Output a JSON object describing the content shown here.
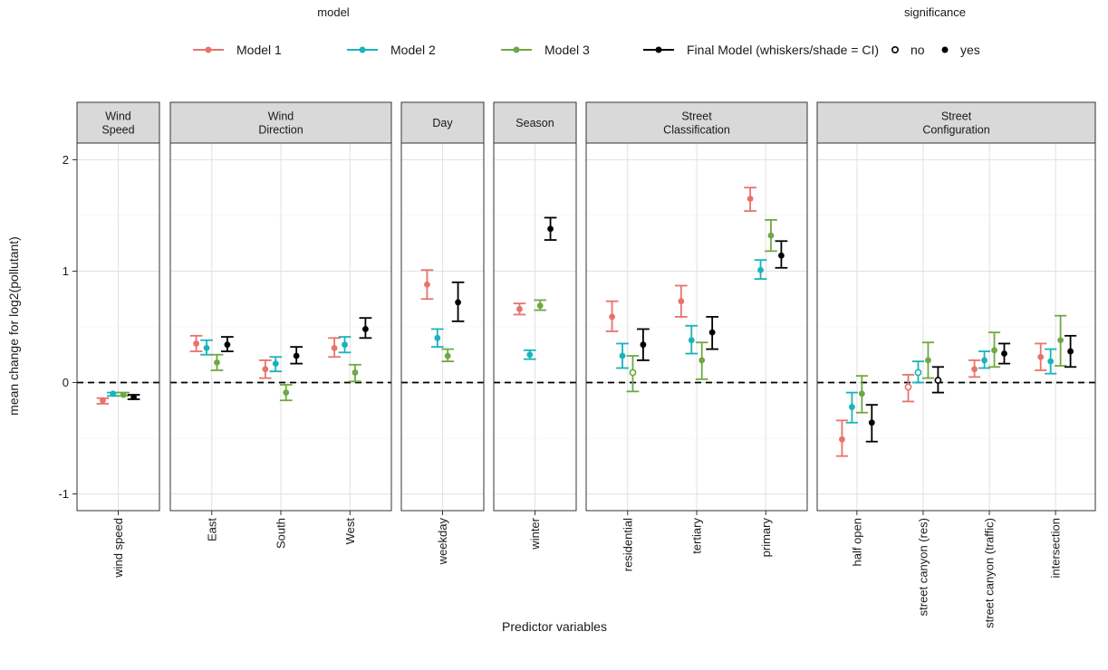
{
  "chart_data": {
    "type": "scatter",
    "subtype": "faceted point-range (coefficient plot with confidence intervals)",
    "xlabel": "Predictor variables",
    "ylabel": "mean change for log2(pollutant)",
    "ylim": [
      -1.15,
      2.15
    ],
    "yticks": [
      -1,
      0,
      1,
      2
    ],
    "grid": true,
    "reference_line": {
      "y": 0,
      "style": "dashed"
    },
    "legend_model": {
      "title": "model",
      "position": "top",
      "items": [
        {
          "label": "Model 1",
          "color": "#e8736b"
        },
        {
          "label": "Model 2",
          "color": "#19b3bd"
        },
        {
          "label": "Model 3",
          "color": "#6fa843"
        },
        {
          "label": "Final Model (whiskers/shade = CI)",
          "color": "#000000"
        }
      ]
    },
    "legend_significance": {
      "title": "significance",
      "position": "top-right",
      "items": [
        {
          "label": "no",
          "shape": "open-circle"
        },
        {
          "label": "yes",
          "shape": "filled-circle"
        }
      ]
    },
    "series_order": [
      "Model 1",
      "Model 2",
      "Model 3",
      "Final Model (whiskers/shade = CI)"
    ],
    "facets": [
      {
        "strip": [
          "Wind",
          "Speed"
        ],
        "categories": [
          {
            "label": "wind speed",
            "points": [
              {
                "series": 0,
                "est": -0.16,
                "lo": -0.19,
                "hi": -0.14,
                "sig": true
              },
              {
                "series": 1,
                "est": -0.1,
                "lo": -0.12,
                "hi": -0.09,
                "sig": true
              },
              {
                "series": 2,
                "est": -0.11,
                "lo": -0.12,
                "hi": -0.09,
                "sig": true
              },
              {
                "series": 3,
                "est": -0.13,
                "lo": -0.15,
                "hi": -0.11,
                "sig": true
              }
            ]
          }
        ]
      },
      {
        "strip": [
          "Wind",
          "Direction"
        ],
        "categories": [
          {
            "label": "East",
            "points": [
              {
                "series": 0,
                "est": 0.35,
                "lo": 0.28,
                "hi": 0.42,
                "sig": true
              },
              {
                "series": 1,
                "est": 0.31,
                "lo": 0.25,
                "hi": 0.38,
                "sig": true
              },
              {
                "series": 2,
                "est": 0.18,
                "lo": 0.11,
                "hi": 0.25,
                "sig": true
              },
              {
                "series": 3,
                "est": 0.34,
                "lo": 0.28,
                "hi": 0.41,
                "sig": true
              }
            ]
          },
          {
            "label": "South",
            "points": [
              {
                "series": 0,
                "est": 0.12,
                "lo": 0.04,
                "hi": 0.2,
                "sig": true
              },
              {
                "series": 1,
                "est": 0.17,
                "lo": 0.1,
                "hi": 0.23,
                "sig": true
              },
              {
                "series": 2,
                "est": -0.09,
                "lo": -0.16,
                "hi": -0.02,
                "sig": true
              },
              {
                "series": 3,
                "est": 0.24,
                "lo": 0.17,
                "hi": 0.32,
                "sig": true
              }
            ]
          },
          {
            "label": "West",
            "points": [
              {
                "series": 0,
                "est": 0.31,
                "lo": 0.23,
                "hi": 0.4,
                "sig": true
              },
              {
                "series": 1,
                "est": 0.34,
                "lo": 0.27,
                "hi": 0.41,
                "sig": true
              },
              {
                "series": 2,
                "est": 0.09,
                "lo": 0.01,
                "hi": 0.16,
                "sig": true
              },
              {
                "series": 3,
                "est": 0.48,
                "lo": 0.4,
                "hi": 0.58,
                "sig": true
              }
            ]
          }
        ]
      },
      {
        "strip": [
          "Day"
        ],
        "categories": [
          {
            "label": "weekday",
            "points": [
              {
                "series": 0,
                "est": 0.88,
                "lo": 0.75,
                "hi": 1.01,
                "sig": true
              },
              {
                "series": 1,
                "est": 0.4,
                "lo": 0.32,
                "hi": 0.48,
                "sig": true
              },
              {
                "series": 2,
                "est": 0.24,
                "lo": 0.19,
                "hi": 0.3,
                "sig": true
              },
              {
                "series": 3,
                "est": 0.72,
                "lo": 0.55,
                "hi": 0.9,
                "sig": true
              }
            ]
          }
        ]
      },
      {
        "strip": [
          "Season"
        ],
        "categories": [
          {
            "label": "winter",
            "points": [
              {
                "series": 0,
                "est": 0.66,
                "lo": 0.61,
                "hi": 0.71,
                "sig": true
              },
              {
                "series": 1,
                "est": 0.25,
                "lo": 0.21,
                "hi": 0.29,
                "sig": true
              },
              {
                "series": 2,
                "est": 0.69,
                "lo": 0.65,
                "hi": 0.74,
                "sig": true
              },
              {
                "series": 3,
                "est": 1.38,
                "lo": 1.28,
                "hi": 1.48,
                "sig": true
              }
            ]
          }
        ]
      },
      {
        "strip": [
          "Street",
          "Classification"
        ],
        "categories": [
          {
            "label": "residential",
            "points": [
              {
                "series": 0,
                "est": 0.59,
                "lo": 0.46,
                "hi": 0.73,
                "sig": true
              },
              {
                "series": 1,
                "est": 0.24,
                "lo": 0.13,
                "hi": 0.35,
                "sig": true
              },
              {
                "series": 2,
                "est": 0.09,
                "lo": -0.08,
                "hi": 0.24,
                "sig": false
              },
              {
                "series": 3,
                "est": 0.34,
                "lo": 0.2,
                "hi": 0.48,
                "sig": true
              }
            ]
          },
          {
            "label": "tertiary",
            "points": [
              {
                "series": 0,
                "est": 0.73,
                "lo": 0.59,
                "hi": 0.87,
                "sig": true
              },
              {
                "series": 1,
                "est": 0.38,
                "lo": 0.26,
                "hi": 0.51,
                "sig": true
              },
              {
                "series": 2,
                "est": 0.2,
                "lo": 0.03,
                "hi": 0.36,
                "sig": true
              },
              {
                "series": 3,
                "est": 0.45,
                "lo": 0.3,
                "hi": 0.59,
                "sig": true
              }
            ]
          },
          {
            "label": "primary",
            "points": [
              {
                "series": 0,
                "est": 1.65,
                "lo": 1.54,
                "hi": 1.75,
                "sig": true
              },
              {
                "series": 1,
                "est": 1.01,
                "lo": 0.93,
                "hi": 1.1,
                "sig": true
              },
              {
                "series": 2,
                "est": 1.32,
                "lo": 1.18,
                "hi": 1.46,
                "sig": true
              },
              {
                "series": 3,
                "est": 1.14,
                "lo": 1.03,
                "hi": 1.27,
                "sig": true
              }
            ]
          }
        ]
      },
      {
        "strip": [
          "Street",
          "Configuration"
        ],
        "categories": [
          {
            "label": "half open",
            "points": [
              {
                "series": 0,
                "est": -0.51,
                "lo": -0.66,
                "hi": -0.34,
                "sig": true
              },
              {
                "series": 1,
                "est": -0.22,
                "lo": -0.36,
                "hi": -0.09,
                "sig": true
              },
              {
                "series": 2,
                "est": -0.1,
                "lo": -0.27,
                "hi": 0.06,
                "sig": true
              },
              {
                "series": 3,
                "est": -0.36,
                "lo": -0.53,
                "hi": -0.2,
                "sig": true
              }
            ]
          },
          {
            "label": "street canyon (res)",
            "points": [
              {
                "series": 0,
                "est": -0.04,
                "lo": -0.17,
                "hi": 0.07,
                "sig": false
              },
              {
                "series": 1,
                "est": 0.09,
                "lo": 0.0,
                "hi": 0.19,
                "sig": false
              },
              {
                "series": 2,
                "est": 0.2,
                "lo": 0.04,
                "hi": 0.36,
                "sig": true
              },
              {
                "series": 3,
                "est": 0.02,
                "lo": -0.09,
                "hi": 0.14,
                "sig": false
              }
            ]
          },
          {
            "label": "street canyon (traffic)",
            "points": [
              {
                "series": 0,
                "est": 0.12,
                "lo": 0.05,
                "hi": 0.2,
                "sig": true
              },
              {
                "series": 1,
                "est": 0.2,
                "lo": 0.13,
                "hi": 0.28,
                "sig": true
              },
              {
                "series": 2,
                "est": 0.29,
                "lo": 0.14,
                "hi": 0.45,
                "sig": true
              },
              {
                "series": 3,
                "est": 0.26,
                "lo": 0.17,
                "hi": 0.35,
                "sig": true
              }
            ]
          },
          {
            "label": "intersection",
            "points": [
              {
                "series": 0,
                "est": 0.23,
                "lo": 0.11,
                "hi": 0.35,
                "sig": true
              },
              {
                "series": 1,
                "est": 0.19,
                "lo": 0.08,
                "hi": 0.3,
                "sig": true
              },
              {
                "series": 2,
                "est": 0.38,
                "lo": 0.15,
                "hi": 0.6,
                "sig": true
              },
              {
                "series": 3,
                "est": 0.28,
                "lo": 0.14,
                "hi": 0.42,
                "sig": true
              }
            ]
          }
        ]
      }
    ]
  }
}
